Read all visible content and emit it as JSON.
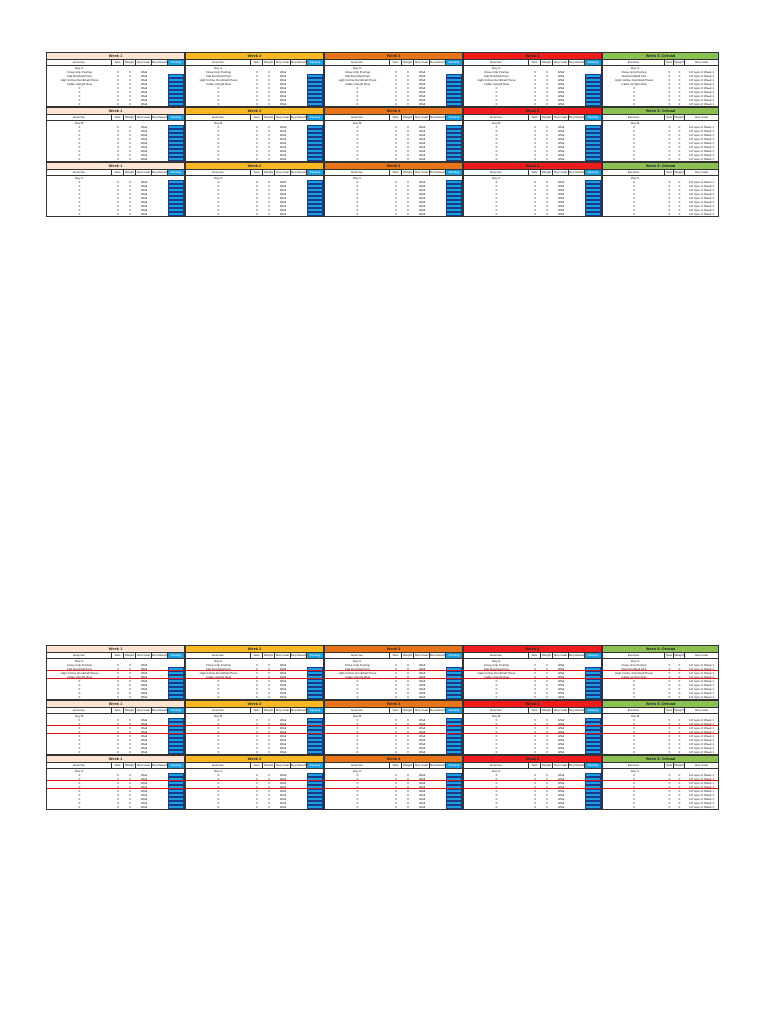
{
  "weeks": [
    {
      "key": "w1",
      "title": "Week 1",
      "color": "#fde4d2",
      "type": "normal"
    },
    {
      "key": "w2",
      "title": "Week 2",
      "color": "#f8b823",
      "type": "normal"
    },
    {
      "key": "w3",
      "title": "Week 3",
      "color": "#e8741a",
      "type": "normal"
    },
    {
      "key": "w4",
      "title": "Week 4",
      "color": "#ee1c1c",
      "type": "normal"
    },
    {
      "key": "w5",
      "title": "Week 5: Deload",
      "color": "#8cc152",
      "type": "deload"
    }
  ],
  "columns": {
    "exercise": "Exercise",
    "sets": "Sets",
    "weight": "Weight",
    "rep_goal": "Rep Goal",
    "rep_results": "Rep Results",
    "passing": "Passing"
  },
  "days": [
    {
      "label": "Day A:",
      "exercises": [
        "Close Grip Pushup",
        "Flat Dumbbell Flys",
        "High Incline Dumbbell Press",
        "Cable Upright Row",
        "0",
        "0",
        "0",
        "0",
        "0"
      ]
    },
    {
      "label": "Day B:",
      "exercises": [
        "0",
        "0",
        "0",
        "0",
        "0",
        "0",
        "0",
        "0",
        "0"
      ]
    },
    {
      "label": "Day C:",
      "exercises": [
        "0",
        "0",
        "0",
        "0",
        "0",
        "0",
        "0",
        "0",
        "0"
      ]
    }
  ],
  "cell_values": {
    "sets": "0",
    "weight": "0",
    "rep_goal": "0/fail",
    "deload_goal": "1/2 reps of Week 1"
  },
  "page2_redlines": [
    2,
    4
  ],
  "pages": [
    "p1",
    "p2"
  ]
}
